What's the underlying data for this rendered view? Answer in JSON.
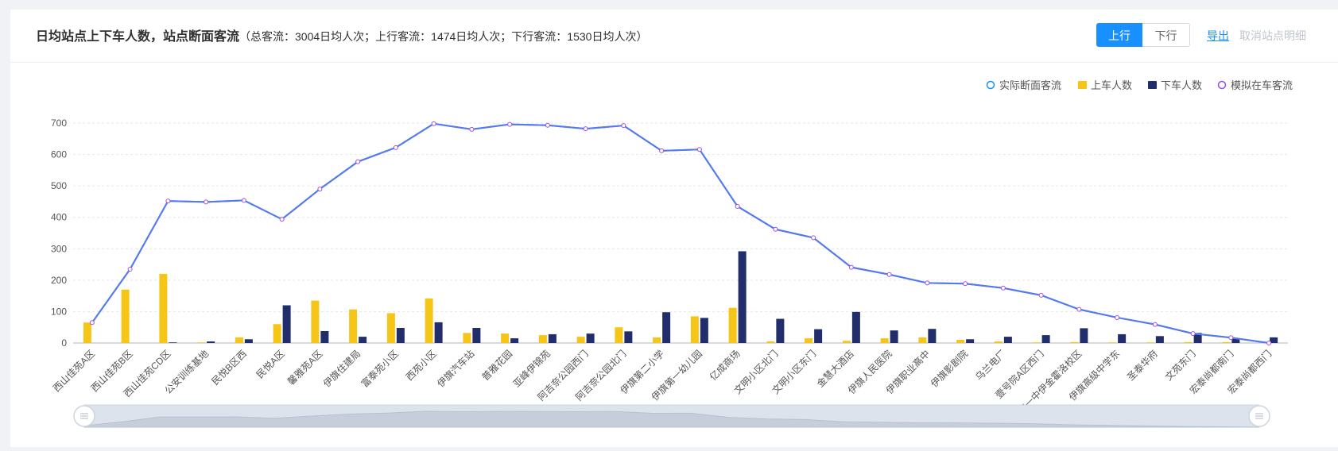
{
  "header": {
    "title": "日均站点上下车人数，站点断面客流",
    "subtitle": "（总客流：3004日均人次；上行客流：1474日均人次；下行客流：1530日均人次）",
    "direction_buttons": [
      {
        "label": "上行",
        "active": true
      },
      {
        "label": "下行",
        "active": false
      }
    ],
    "export_label": "导出",
    "cancel_label": "取消站点明细"
  },
  "colors": {
    "accent": "#1890ff",
    "boarding": "#f5c518",
    "alighting": "#222d6b",
    "section_line": "#4f7df0",
    "simulated_line": "#a04de8"
  },
  "chart_data": {
    "type": "bar",
    "categories": [
      "西山佳苑A区",
      "西山佳苑B区",
      "西山佳苑CD区",
      "公安训练基地",
      "民悦B区西",
      "民悦A区",
      "馨雅苑A区",
      "伊旗住建局",
      "富泰苑小区",
      "西苑小区",
      "伊旗汽车站",
      "普雅花园",
      "亚峰伊锦苑",
      "阿吉奈公园西门",
      "阿吉奈公园北门",
      "伊旗第二小学",
      "伊旗第一幼儿园",
      "亿成商场",
      "文明小区北门",
      "文明小区东门",
      "金慧大酒店",
      "伊旗人民医院",
      "伊旗职业高中",
      "伊旗影剧院",
      "乌兰电厂",
      "壹号院A区西门",
      "市一中伊金霍洛校区",
      "伊旗高级中学东",
      "圣泰华府",
      "文苑东门",
      "宏泰尚都南门",
      "宏泰尚都西门"
    ],
    "series": [
      {
        "name": "实际断面客流",
        "kind": "line",
        "values": [
          65,
          235,
          452,
          449,
          454,
          394,
          490,
          577,
          622,
          698,
          680,
          696,
          693,
          682,
          692,
          612,
          616,
          435,
          362,
          335,
          241,
          218,
          191,
          189,
          175,
          152,
          107,
          81,
          59,
          30,
          17,
          0
        ]
      },
      {
        "name": "上车人数",
        "kind": "bar",
        "values": [
          65,
          170,
          220,
          2,
          18,
          60,
          135,
          107,
          95,
          142,
          32,
          30,
          25,
          20,
          50,
          18,
          85,
          112,
          5,
          15,
          7,
          15,
          18,
          10,
          5,
          2,
          3,
          2,
          2,
          3,
          3,
          0
        ]
      },
      {
        "name": "下车人数",
        "kind": "bar",
        "values": [
          0,
          0,
          2,
          5,
          12,
          120,
          38,
          20,
          48,
          66,
          48,
          15,
          28,
          30,
          37,
          98,
          80,
          292,
          77,
          44,
          99,
          40,
          45,
          12,
          20,
          25,
          47,
          28,
          22,
          32,
          15,
          18
        ]
      },
      {
        "name": "模拟在车客流",
        "kind": "line",
        "values": [
          65,
          235,
          452,
          449,
          454,
          394,
          490,
          577,
          622,
          698,
          680,
          696,
          693,
          682,
          692,
          612,
          616,
          435,
          362,
          335,
          241,
          218,
          191,
          189,
          175,
          152,
          107,
          81,
          59,
          30,
          17,
          0
        ]
      }
    ],
    "ylim": [
      0,
      700
    ],
    "yticks": [
      0,
      100,
      200,
      300,
      400,
      500,
      600,
      700
    ],
    "grid": true,
    "legend_position": "top-right",
    "has_zoom_slider": true
  }
}
